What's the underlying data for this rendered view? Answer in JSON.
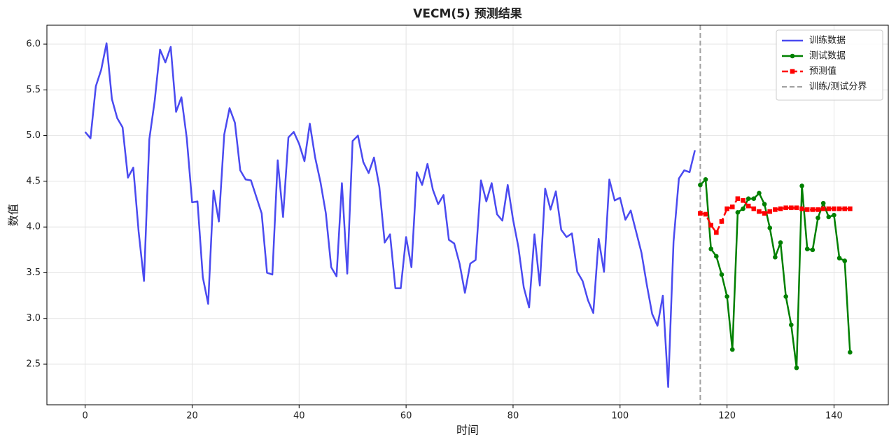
{
  "chart_data": {
    "type": "line",
    "title": "VECM(5) 预测结果",
    "xlabel": "时间",
    "ylabel": "数值",
    "xlim": [
      -7.15,
      150.15
    ],
    "ylim": [
      2.056,
      6.207
    ],
    "xticks": [
      0,
      20,
      40,
      60,
      80,
      100,
      120,
      140
    ],
    "yticks": [
      2.5,
      {
        "value": 3,
        "label": "3.0"
      },
      3.5,
      {
        "value": 4,
        "label": "4.0"
      },
      4.5,
      {
        "value": 5,
        "label": "5.0"
      },
      5.5,
      {
        "value": 6,
        "label": "6.0"
      }
    ],
    "grid": true,
    "legend": "upper right",
    "series": [
      {
        "name": "训练数据",
        "color": "#4a4af0",
        "marker": "none",
        "x": [
          0,
          1,
          2,
          3,
          4,
          5,
          6,
          7,
          8,
          9,
          10,
          11,
          12,
          13,
          14,
          15,
          16,
          17,
          18,
          19,
          20,
          21,
          22,
          23,
          24,
          25,
          26,
          27,
          28,
          29,
          30,
          31,
          32,
          33,
          34,
          35,
          36,
          37,
          38,
          39,
          40,
          41,
          42,
          43,
          44,
          45,
          46,
          47,
          48,
          49,
          50,
          51,
          52,
          53,
          54,
          55,
          56,
          57,
          58,
          59,
          60,
          61,
          62,
          63,
          64,
          65,
          66,
          67,
          68,
          69,
          70,
          71,
          72,
          73,
          74,
          75,
          76,
          77,
          78,
          79,
          80,
          81,
          82,
          83,
          84,
          85,
          86,
          87,
          88,
          89,
          90,
          91,
          92,
          93,
          94,
          95,
          96,
          97,
          98,
          99,
          100,
          101,
          102,
          103,
          104,
          105,
          106,
          107,
          108,
          109,
          110,
          111,
          112,
          113,
          114
        ],
        "values": [
          5.04,
          4.97,
          5.54,
          5.72,
          6.01,
          5.4,
          5.19,
          5.09,
          4.54,
          4.65,
          3.95,
          3.41,
          4.96,
          5.38,
          5.94,
          5.8,
          5.97,
          5.26,
          5.42,
          4.97,
          4.27,
          4.28,
          3.45,
          3.16,
          4.4,
          4.06,
          5.01,
          5.3,
          5.14,
          4.62,
          4.52,
          4.51,
          4.33,
          4.15,
          3.5,
          3.48,
          4.73,
          4.11,
          4.98,
          5.04,
          4.91,
          4.72,
          5.13,
          4.76,
          4.49,
          4.15,
          3.56,
          3.46,
          4.48,
          3.49,
          4.94,
          5.0,
          4.71,
          4.59,
          4.76,
          4.44,
          3.83,
          3.92,
          3.33,
          3.33,
          3.89,
          3.56,
          4.6,
          4.46,
          4.69,
          4.41,
          4.25,
          4.35,
          3.86,
          3.82,
          3.6,
          3.28,
          3.6,
          3.64,
          4.51,
          4.28,
          4.48,
          4.14,
          4.07,
          4.46,
          4.08,
          3.78,
          3.34,
          3.12,
          3.92,
          3.36,
          4.42,
          4.19,
          4.39,
          3.97,
          3.89,
          3.93,
          3.51,
          3.41,
          3.2,
          3.06,
          3.87,
          3.51,
          4.52,
          4.29,
          4.32,
          4.08,
          4.18,
          3.95,
          3.72,
          3.37,
          3.05,
          2.92,
          3.25,
          2.25,
          3.84,
          4.53,
          4.62,
          4.6,
          4.84
        ]
      },
      {
        "name": "测试数据",
        "color": "#008000",
        "marker": "circle",
        "x": [
          115,
          116,
          117,
          118,
          119,
          120,
          121,
          122,
          123,
          124,
          125,
          126,
          127,
          128,
          129,
          130,
          131,
          132,
          133,
          134,
          135,
          136,
          137,
          138,
          139,
          140,
          141,
          142,
          143
        ],
        "values": [
          4.46,
          4.52,
          3.76,
          3.68,
          3.48,
          3.24,
          2.66,
          4.16,
          4.2,
          4.31,
          4.31,
          4.37,
          4.25,
          3.99,
          3.67,
          3.83,
          3.24,
          2.93,
          2.46,
          4.45,
          3.76,
          3.75,
          4.1,
          4.26,
          4.11,
          4.13,
          3.66,
          3.63,
          2.63
        ]
      },
      {
        "name": "预测值",
        "color": "#ff0000",
        "marker": "square",
        "dashed": true,
        "x": [
          115,
          116,
          117,
          118,
          119,
          120,
          121,
          122,
          123,
          124,
          125,
          126,
          127,
          128,
          129,
          130,
          131,
          132,
          133,
          134,
          135,
          136,
          137,
          138,
          139,
          140,
          141,
          142,
          143
        ],
        "values": [
          4.15,
          4.14,
          4.02,
          3.94,
          4.06,
          4.2,
          4.22,
          4.31,
          4.29,
          4.23,
          4.2,
          4.17,
          4.15,
          4.17,
          4.19,
          4.2,
          4.21,
          4.21,
          4.21,
          4.2,
          4.19,
          4.19,
          4.19,
          4.2,
          4.2,
          4.2,
          4.2,
          4.2,
          4.2
        ]
      }
    ],
    "vlines": [
      {
        "name": "训练/测试分界",
        "x": 115,
        "color": "#a0a0a0"
      }
    ]
  }
}
